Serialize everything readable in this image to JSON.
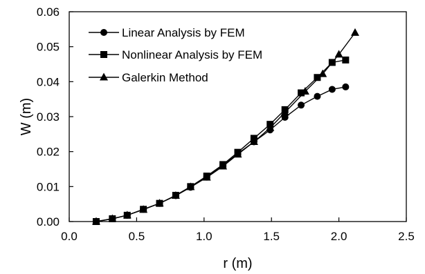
{
  "chart_data": {
    "type": "line",
    "title": "",
    "xlabel": "r (m)",
    "ylabel": "W (m)",
    "xlim": [
      0.0,
      2.5
    ],
    "ylim": [
      0.0,
      0.06
    ],
    "xticks": [
      "0.0",
      "0.5",
      "1.0",
      "1.5",
      "2.0",
      "2.5"
    ],
    "yticks": [
      "0.00",
      "0.01",
      "0.02",
      "0.03",
      "0.04",
      "0.05",
      "0.06"
    ],
    "grid": false,
    "legend_position": "top-left",
    "series": [
      {
        "name": "Linear Analysis by FEM",
        "marker": "circle",
        "x": [
          0.2,
          0.32,
          0.43,
          0.55,
          0.67,
          0.79,
          0.9,
          1.02,
          1.14,
          1.25,
          1.37,
          1.49,
          1.6,
          1.72,
          1.84,
          1.95,
          2.05
        ],
        "y": [
          0.0,
          0.0008,
          0.0018,
          0.0035,
          0.0052,
          0.0074,
          0.0098,
          0.0127,
          0.016,
          0.0194,
          0.0228,
          0.0262,
          0.0298,
          0.0333,
          0.0358,
          0.0378,
          0.0385
        ]
      },
      {
        "name": "Nonlinear Analysis by FEM",
        "marker": "square",
        "x": [
          0.2,
          0.32,
          0.43,
          0.55,
          0.67,
          0.79,
          0.9,
          1.02,
          1.14,
          1.25,
          1.37,
          1.49,
          1.6,
          1.72,
          1.84,
          1.95,
          2.05
        ],
        "y": [
          0.0,
          0.0008,
          0.0018,
          0.0035,
          0.0052,
          0.0075,
          0.01,
          0.013,
          0.0163,
          0.0198,
          0.0238,
          0.0278,
          0.032,
          0.0368,
          0.0412,
          0.0455,
          0.0462
        ]
      },
      {
        "name": "Galerkin Method",
        "marker": "triangle",
        "x": [
          0.2,
          0.32,
          0.43,
          0.55,
          0.67,
          0.79,
          0.9,
          1.02,
          1.14,
          1.25,
          1.37,
          1.49,
          1.6,
          1.75,
          1.88,
          2.0,
          2.12
        ],
        "y": [
          0.0,
          0.0008,
          0.0018,
          0.0034,
          0.0052,
          0.0074,
          0.0099,
          0.0126,
          0.0158,
          0.0192,
          0.0228,
          0.0268,
          0.0312,
          0.0372,
          0.0422,
          0.0478,
          0.054
        ]
      }
    ]
  }
}
